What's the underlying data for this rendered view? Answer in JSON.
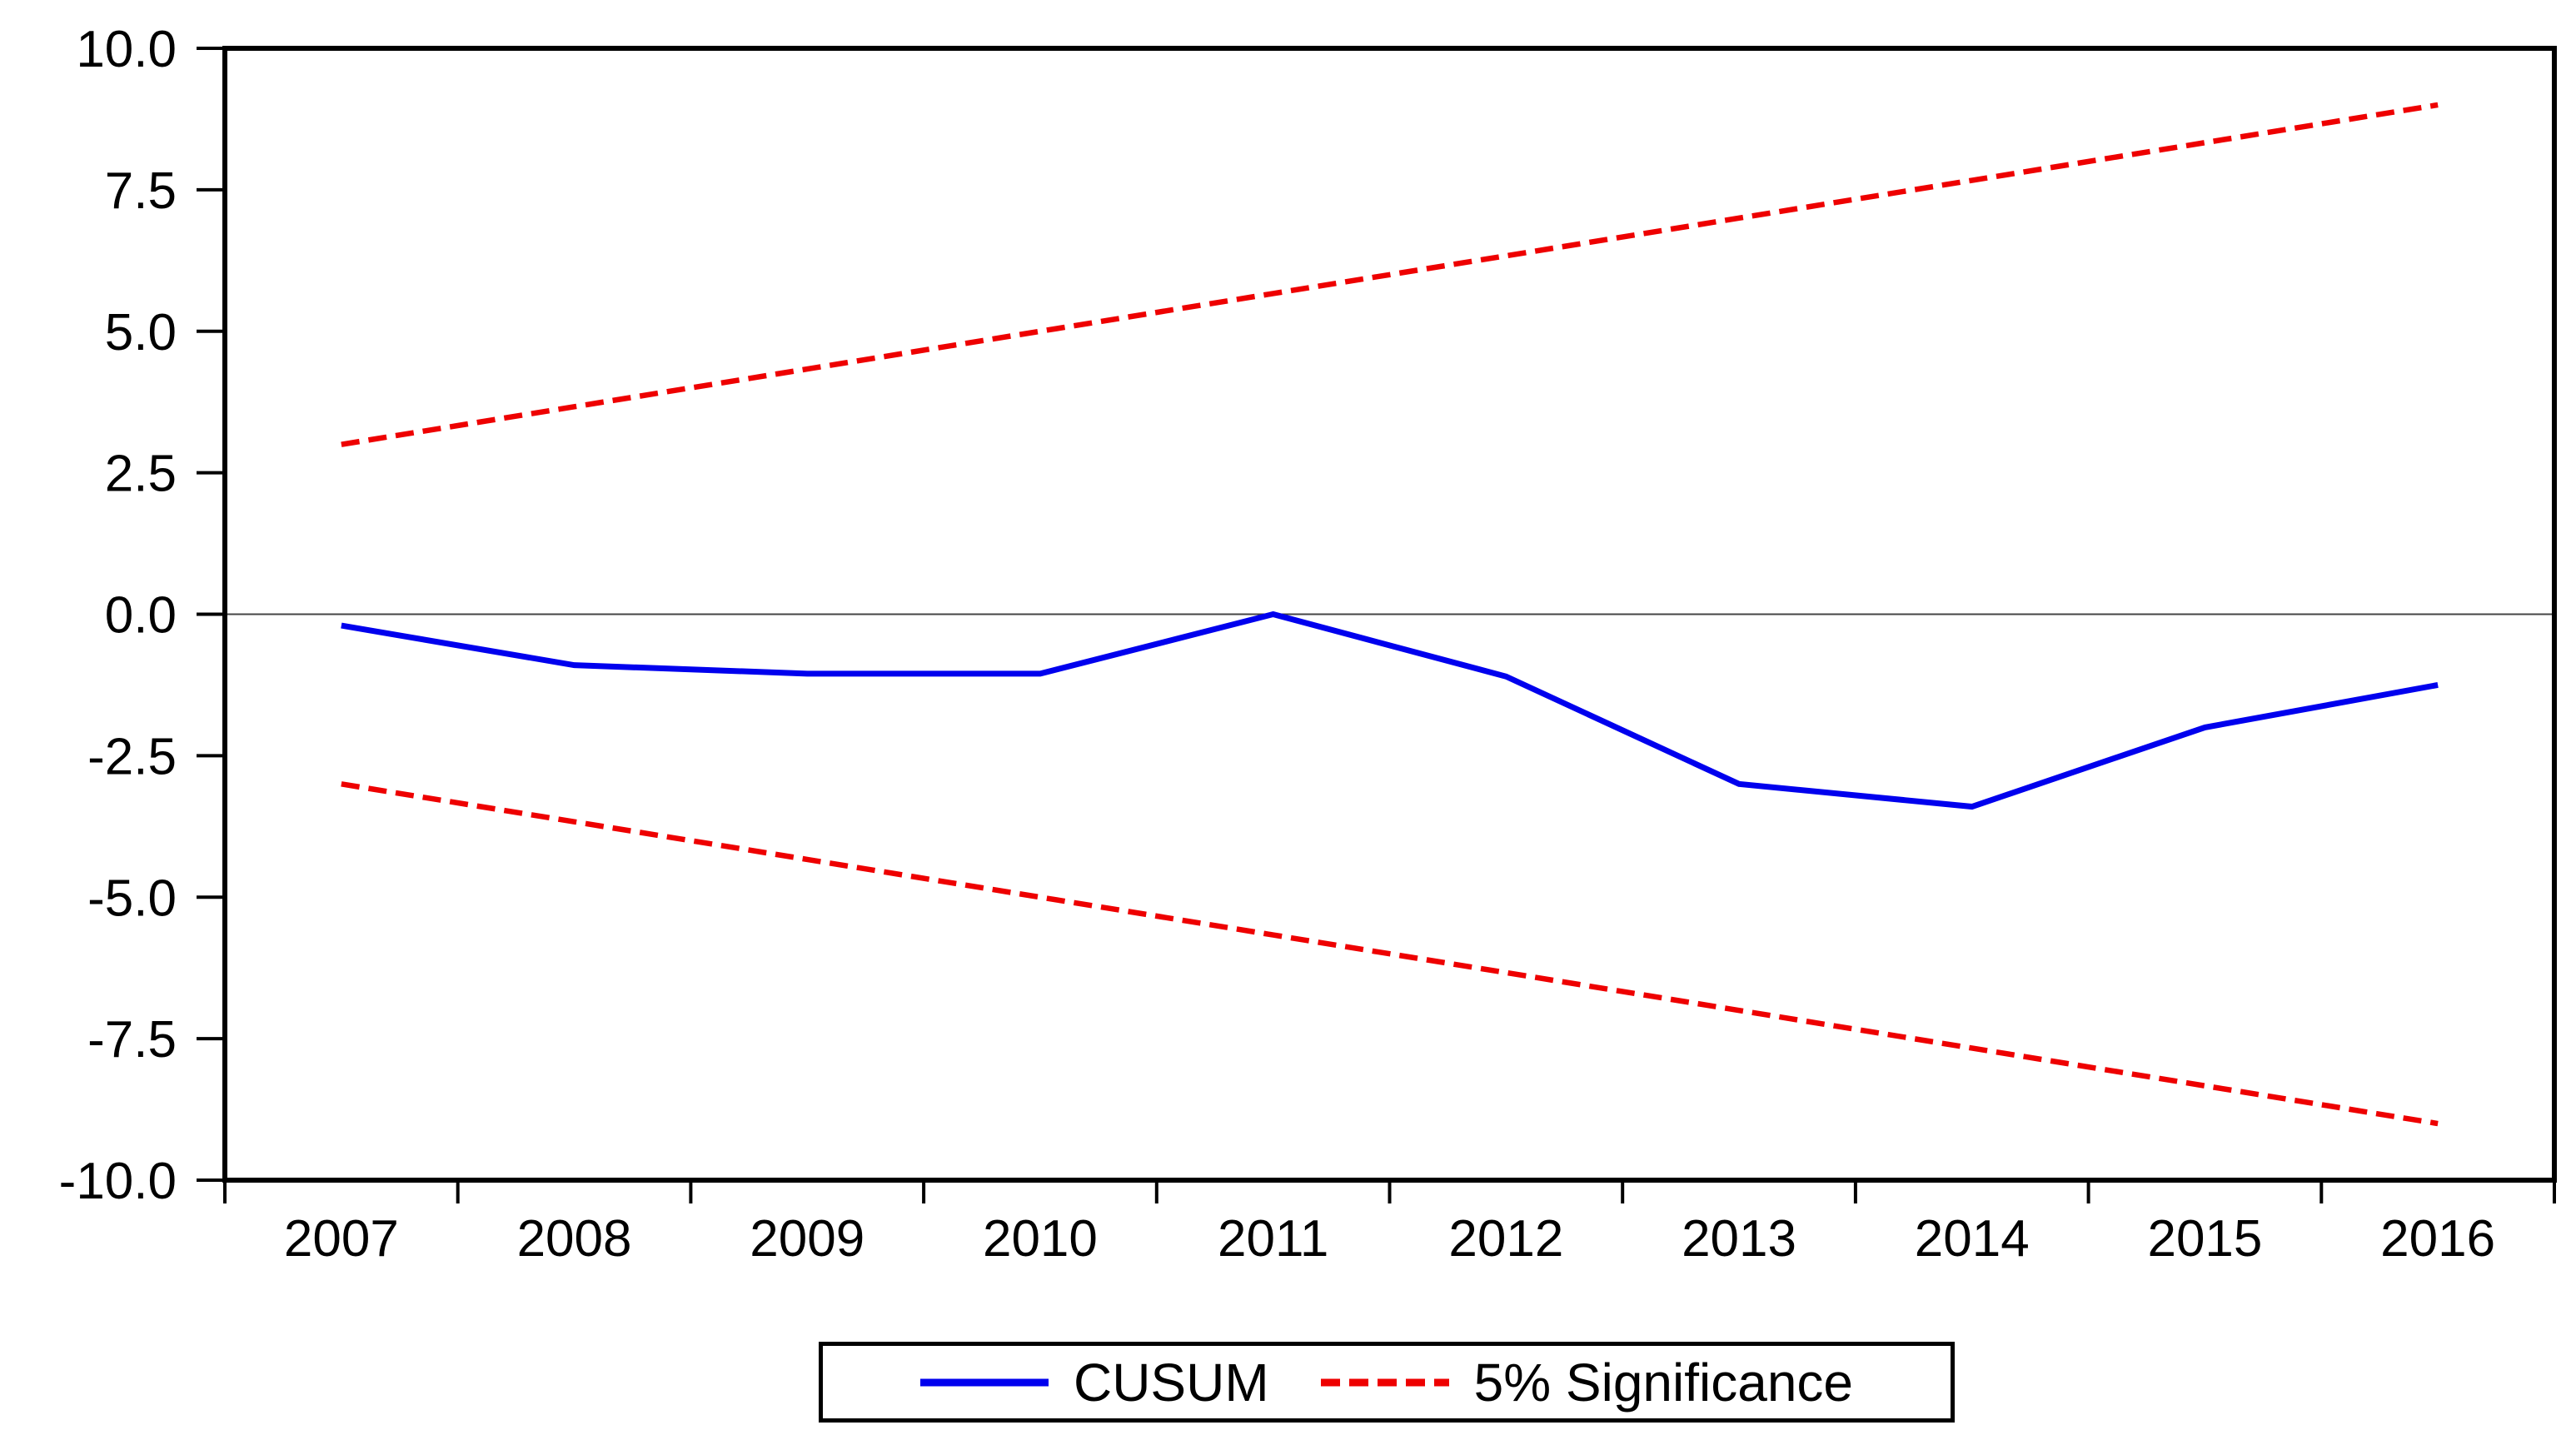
{
  "chart_data": {
    "type": "line",
    "title": "",
    "xlabel": "",
    "ylabel": "",
    "x": [
      2007,
      2008,
      2009,
      2010,
      2011,
      2012,
      2013,
      2014,
      2015,
      2016
    ],
    "x_tick_labels": [
      "2007",
      "2008",
      "2009",
      "2010",
      "2011",
      "2012",
      "2013",
      "2014",
      "2015",
      "2016"
    ],
    "xlim": [
      2006.5,
      2016.5
    ],
    "y_ticks": [
      10.0,
      7.5,
      5.0,
      2.5,
      0.0,
      -2.5,
      -5.0,
      -7.5,
      -10.0
    ],
    "y_tick_labels": [
      "10.0",
      "7.5",
      "5.0",
      "2.5",
      "0.0",
      "-2.5",
      "-5.0",
      "-7.5",
      "-10.0"
    ],
    "ylim": [
      -10.0,
      10.0
    ],
    "grid": "horizontal-zero-line-only",
    "zero_line_value": 0.0,
    "legend_position": "bottom-center",
    "series": [
      {
        "name": "CUSUM",
        "color": "#0000ee",
        "style": "solid",
        "values": [
          -0.2,
          -0.9,
          -1.05,
          -1.05,
          0.0,
          -1.1,
          -3.0,
          -3.4,
          -2.0,
          -1.25
        ]
      },
      {
        "name": "5% Significance (upper bound)",
        "color": "#ee0000",
        "style": "dashed",
        "values": [
          3.0,
          3.667,
          4.333,
          5.0,
          5.667,
          6.333,
          7.0,
          7.667,
          8.333,
          9.0
        ]
      },
      {
        "name": "5% Significance (lower bound)",
        "color": "#ee0000",
        "style": "dashed",
        "values": [
          -3.0,
          -3.667,
          -4.333,
          -5.0,
          -5.667,
          -6.333,
          -7.0,
          -7.667,
          -8.333,
          -9.0
        ]
      }
    ],
    "legend": {
      "cusum_label": "CUSUM",
      "significance_label": "5% Significance"
    },
    "colors": {
      "cusum": "#0000ee",
      "significance": "#ee0000",
      "axis": "#000000",
      "zero_line": "#444444",
      "background": "#ffffff"
    }
  }
}
